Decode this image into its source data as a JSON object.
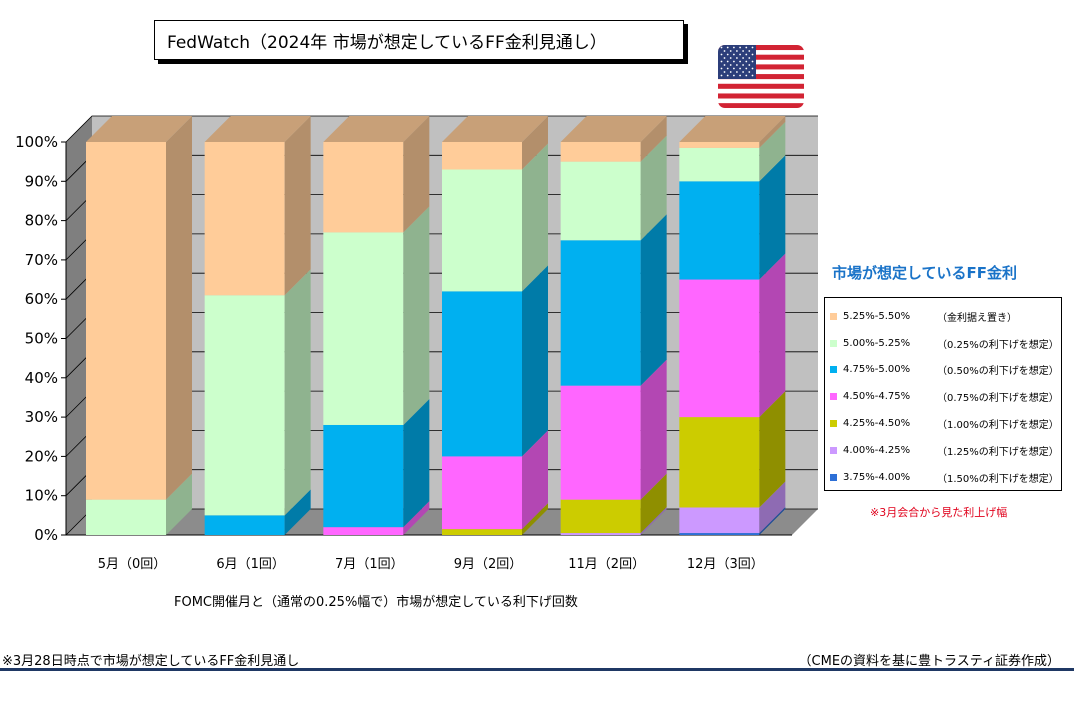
{
  "title": "FedWatch（2024年 市場が想定しているFF金利見通し）",
  "legend_title": "市場が想定しているFF金利",
  "rate_note": "※3月会合から見た利上げ幅",
  "xaxis_title": "FOMC開催月と（通常の0.25%幅で）市場が想定している利下げ回数",
  "footer_left": "※3月28日時点で市場が想定しているFF金利見通し",
  "footer_right": "（CMEの資料を基に豊トラスティ証券作成）",
  "colors": {
    "background": "#c0c0c0",
    "flag_red": "#d22333",
    "flag_blue": "#2c3e7a"
  },
  "chart_data": {
    "type": "bar",
    "stacked": true,
    "three_d": true,
    "categories": [
      "5月（0回）",
      "6月（1回）",
      "7月（1回）",
      "9月（2回）",
      "11月（2回）",
      "12月（3回）"
    ],
    "ylim": [
      0,
      100
    ],
    "yticks": [
      "0%",
      "10%",
      "20%",
      "30%",
      "40%",
      "50%",
      "60%",
      "70%",
      "80%",
      "90%",
      "100%"
    ],
    "legend_position": "right",
    "series": [
      {
        "name": "3.75%-4.00%",
        "note": "（1.50%の利下げを想定）",
        "color": "#2d6fd6",
        "side": "#1f4e97",
        "top": "#4a8ae6",
        "values": [
          0,
          0,
          0,
          0,
          0,
          0.5
        ]
      },
      {
        "name": "4.00%-4.25%",
        "note": "（1.25%の利下げを想定）",
        "color": "#cc99ff",
        "side": "#8e6bb3",
        "top": "#d9b3ff",
        "values": [
          0,
          0,
          0,
          0,
          0.5,
          6.5
        ]
      },
      {
        "name": "4.25%-4.50%",
        "note": "（1.00%の利下げを想定）",
        "color": "#cccc00",
        "side": "#8f8f00",
        "top": "#d6d633",
        "values": [
          0,
          0,
          0,
          1.5,
          8.5,
          23
        ]
      },
      {
        "name": "4.50%-4.75%",
        "note": "（0.75%の利下げを想定）",
        "color": "#ff66ff",
        "side": "#b347b3",
        "top": "#ff88ff",
        "values": [
          0,
          0,
          2,
          18.5,
          29,
          35
        ]
      },
      {
        "name": "4.75%-5.00%",
        "note": "（0.50%の利下げを想定）",
        "color": "#00b0f0",
        "side": "#007ba8",
        "top": "#33c0f3",
        "values": [
          0,
          5,
          26,
          42,
          37,
          25
        ]
      },
      {
        "name": "5.00%-5.25%",
        "note": "（0.25%の利下げを想定）",
        "color": "#ccffcc",
        "side": "#8fb38f",
        "top": "#d6ffd6",
        "values": [
          9,
          56,
          49,
          31,
          20,
          8.5
        ]
      },
      {
        "name": "5.25%-5.50%",
        "note": "（金利据え置き）",
        "color": "#ffcc99",
        "side": "#b38f6b",
        "top": "#c8a078",
        "values": [
          91,
          39,
          23,
          7,
          5,
          1.5
        ]
      }
    ]
  }
}
